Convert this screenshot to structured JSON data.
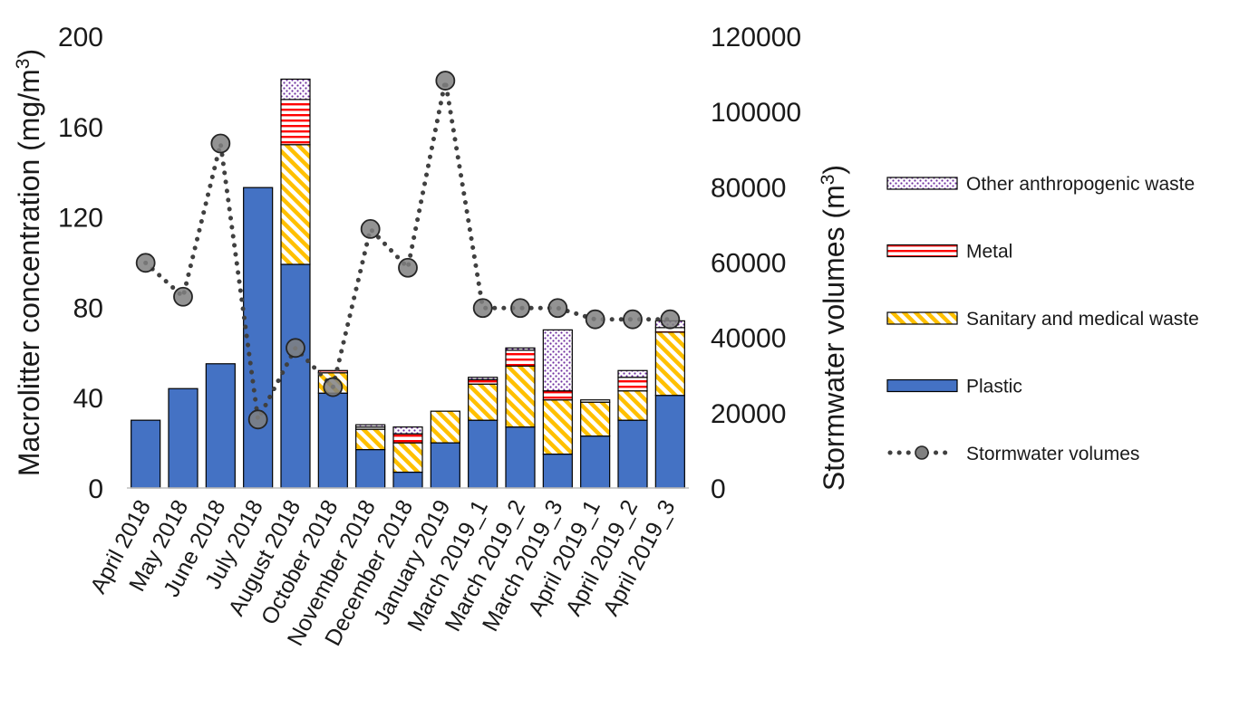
{
  "chart_data": {
    "type": "bar",
    "stacked": true,
    "categories": [
      "April 2018",
      "May 2018",
      "June 2018",
      "July 2018",
      "August 2018",
      "October 2018",
      "November 2018",
      "December 2018",
      "January 2019",
      "March 2019_1",
      "March 2019_2",
      "March 2019_3",
      "April 2019_1",
      "April 2019_2",
      "April 2019_3"
    ],
    "series": [
      {
        "name": "Plastic",
        "color": "#4472c4",
        "pattern": "solid",
        "values": [
          30,
          44,
          55,
          133,
          99,
          42,
          17,
          7,
          20,
          30,
          27,
          15,
          23,
          30,
          41
        ]
      },
      {
        "name": "Sanitary and medical waste",
        "color": "#ffc000",
        "pattern": "diagonal-stripes",
        "values": [
          0,
          0,
          0,
          0,
          53,
          9,
          9,
          13,
          14,
          16,
          27,
          24,
          15,
          13,
          28
        ]
      },
      {
        "name": "Metal",
        "color": "#ff0000",
        "pattern": "horizontal-stripes",
        "values": [
          0,
          0,
          0,
          0,
          20,
          1,
          1,
          4,
          0,
          2,
          7,
          4,
          1,
          6,
          2
        ]
      },
      {
        "name": "Other anthropogenic waste",
        "color": "#7030a0",
        "pattern": "dots",
        "values": [
          0,
          0,
          0,
          0,
          9,
          0,
          1,
          3,
          0,
          1,
          1,
          27,
          0,
          3,
          3
        ]
      }
    ],
    "line_series": {
      "name": "Stormwater volumes",
      "axis": "right",
      "style": "dotted",
      "marker": "circle",
      "color": "#404040",
      "values": [
        59800,
        50800,
        91500,
        18200,
        37200,
        26800,
        68800,
        58500,
        108200,
        47800,
        47800,
        47800,
        44800,
        44800,
        44800
      ]
    },
    "y_left": {
      "ticks": [
        "0",
        "40",
        "80",
        "120",
        "160",
        "200"
      ],
      "range": [
        0,
        200
      ]
    },
    "y_right": {
      "ticks": [
        "0",
        "20000",
        "40000",
        "60000",
        "80000",
        "100000",
        "120000"
      ],
      "range": [
        0,
        120000
      ]
    },
    "legend": {
      "position": "right",
      "items": [
        {
          "label": "Other anthropogenic waste",
          "series": "Other anthropogenic waste"
        },
        {
          "label": "Metal",
          "series": "Metal"
        },
        {
          "label": "Sanitary and medical waste",
          "series": "Sanitary and medical waste"
        },
        {
          "label": "Plastic",
          "series": "Plastic"
        },
        {
          "label": "Stormwater volumes",
          "series": "Stormwater volumes"
        }
      ]
    }
  }
}
